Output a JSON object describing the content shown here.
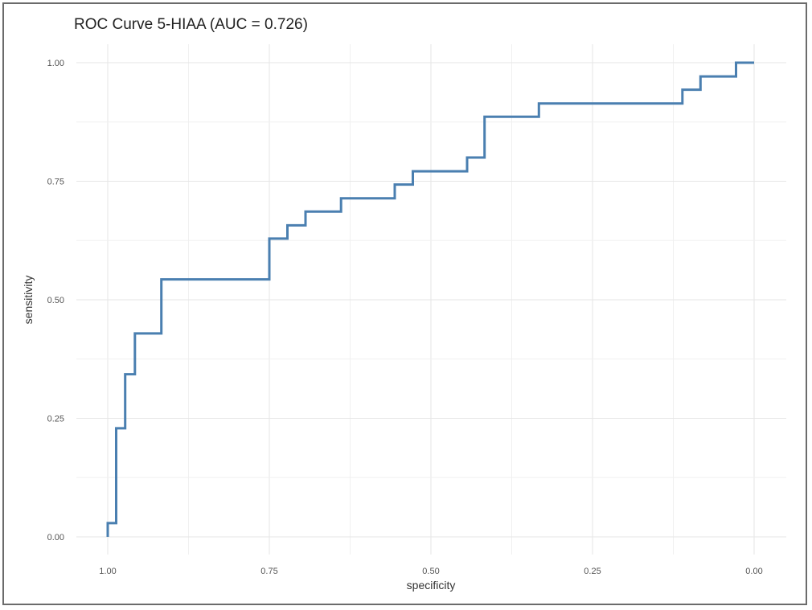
{
  "chart_data": {
    "type": "line",
    "title": "ROC Curve 5-HIAA (AUC = 0.726)",
    "xlabel": "specificity",
    "ylabel": "sensitivity",
    "xlim": [
      1.0,
      0.0
    ],
    "ylim": [
      0.0,
      1.0
    ],
    "x_reversed": true,
    "grid": true,
    "x_ticks": [
      1.0,
      0.75,
      0.5,
      0.25,
      0.0
    ],
    "x_tick_labels": [
      "1.00",
      "0.75",
      "0.50",
      "0.25",
      "0.00"
    ],
    "y_ticks": [
      0.0,
      0.25,
      0.5,
      0.75,
      1.0
    ],
    "y_tick_labels": [
      "0.00",
      "0.25",
      "0.50",
      "0.75",
      "1.00"
    ],
    "line_color": "#4a7fb0",
    "series": [
      {
        "specificity": [
          1.0,
          1.0,
          0.987,
          0.987,
          0.973,
          0.973,
          0.958,
          0.958,
          0.917,
          0.917,
          0.75,
          0.75,
          0.722,
          0.722,
          0.694,
          0.694,
          0.639,
          0.639,
          0.556,
          0.556,
          0.528,
          0.528,
          0.444,
          0.444,
          0.417,
          0.417,
          0.333,
          0.333,
          0.111,
          0.111,
          0.083,
          0.083,
          0.028,
          0.028,
          0.0
        ],
        "sensitivity": [
          0.0,
          0.029,
          0.029,
          0.229,
          0.229,
          0.343,
          0.343,
          0.429,
          0.429,
          0.543,
          0.543,
          0.629,
          0.629,
          0.657,
          0.657,
          0.686,
          0.686,
          0.714,
          0.714,
          0.743,
          0.743,
          0.771,
          0.771,
          0.8,
          0.8,
          0.886,
          0.886,
          0.914,
          0.914,
          0.943,
          0.943,
          0.971,
          0.971,
          1.0,
          1.0
        ]
      }
    ]
  }
}
